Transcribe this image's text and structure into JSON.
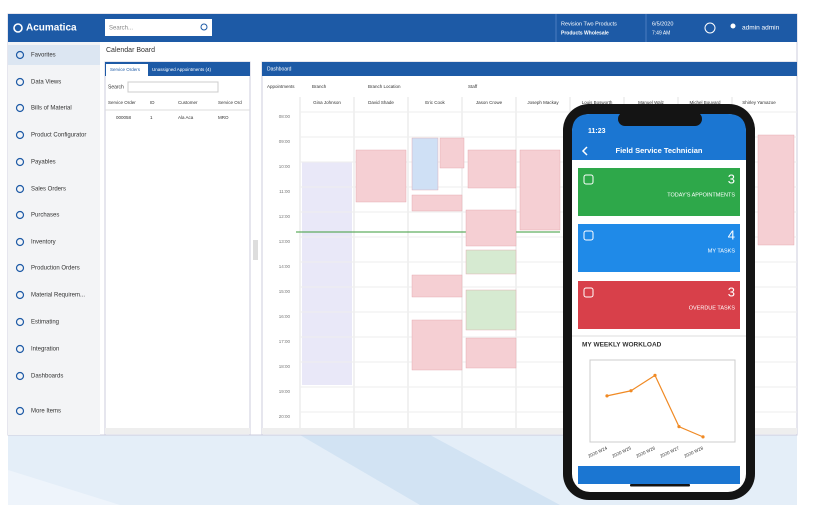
{
  "header": {
    "logo": "Acumatica",
    "search_placeholder": "Search...",
    "company": "Revision Two Products",
    "branch": "Products Wholesale",
    "date": "6/5/2020",
    "time": "7:49 AM",
    "user": "admin admin"
  },
  "sidebar": {
    "items": [
      "Favorites",
      "Data Views",
      "Bills of Material",
      "Product Configurator",
      "Payables",
      "Sales Orders",
      "Purchases",
      "Inventory",
      "Production Orders",
      "Material Requirem...",
      "Estimating",
      "Integration",
      "Dashboards",
      "More Items"
    ]
  },
  "screen": {
    "title": "Calendar Board",
    "tabs": [
      "Service Orders",
      "Unassigned Appointments (4)"
    ],
    "search_label": "Search",
    "grid_headers": [
      "Service Order",
      "ID",
      "Customer",
      "Service Ord"
    ],
    "row": [
      "000058",
      "1",
      "Ala Aca",
      "MRO"
    ],
    "dashboard": "Dashboard",
    "toolbar": [
      "Appointments",
      "Branch",
      "Branch Location",
      "Staff"
    ],
    "staff": [
      "Gina Johnson",
      "David Shade",
      "Eric Cook",
      "Jason Crowe",
      "Joseph Mackay",
      "Louis Bosworth",
      "Manuel Walz",
      "Michel Bouvard",
      "Shirley Yamazoe"
    ],
    "times": [
      "08:00",
      "09:00",
      "10:00",
      "11:00",
      "12:00",
      "13:00",
      "14:00",
      "15:00",
      "16:00",
      "17:00",
      "18:00",
      "19:00",
      "20:00"
    ]
  },
  "phone": {
    "time": "11:23",
    "title": "Field Service Technician",
    "cards": [
      {
        "value": 3,
        "label": "TODAY'S APPOINTMENTS"
      },
      {
        "value": 4,
        "label": "MY TASKS"
      },
      {
        "value": 3,
        "label": "OVERDUE TASKS"
      }
    ]
  },
  "chart_data": {
    "type": "line",
    "title": "MY WEEKLY WORKLOAD",
    "categories": [
      "2020 W24",
      "2020 W25",
      "2020 W26",
      "2020 W27",
      "2020 W28"
    ],
    "values": [
      9,
      10,
      13,
      3,
      1
    ],
    "color": "#f08a24",
    "ylim": [
      0,
      16
    ]
  }
}
